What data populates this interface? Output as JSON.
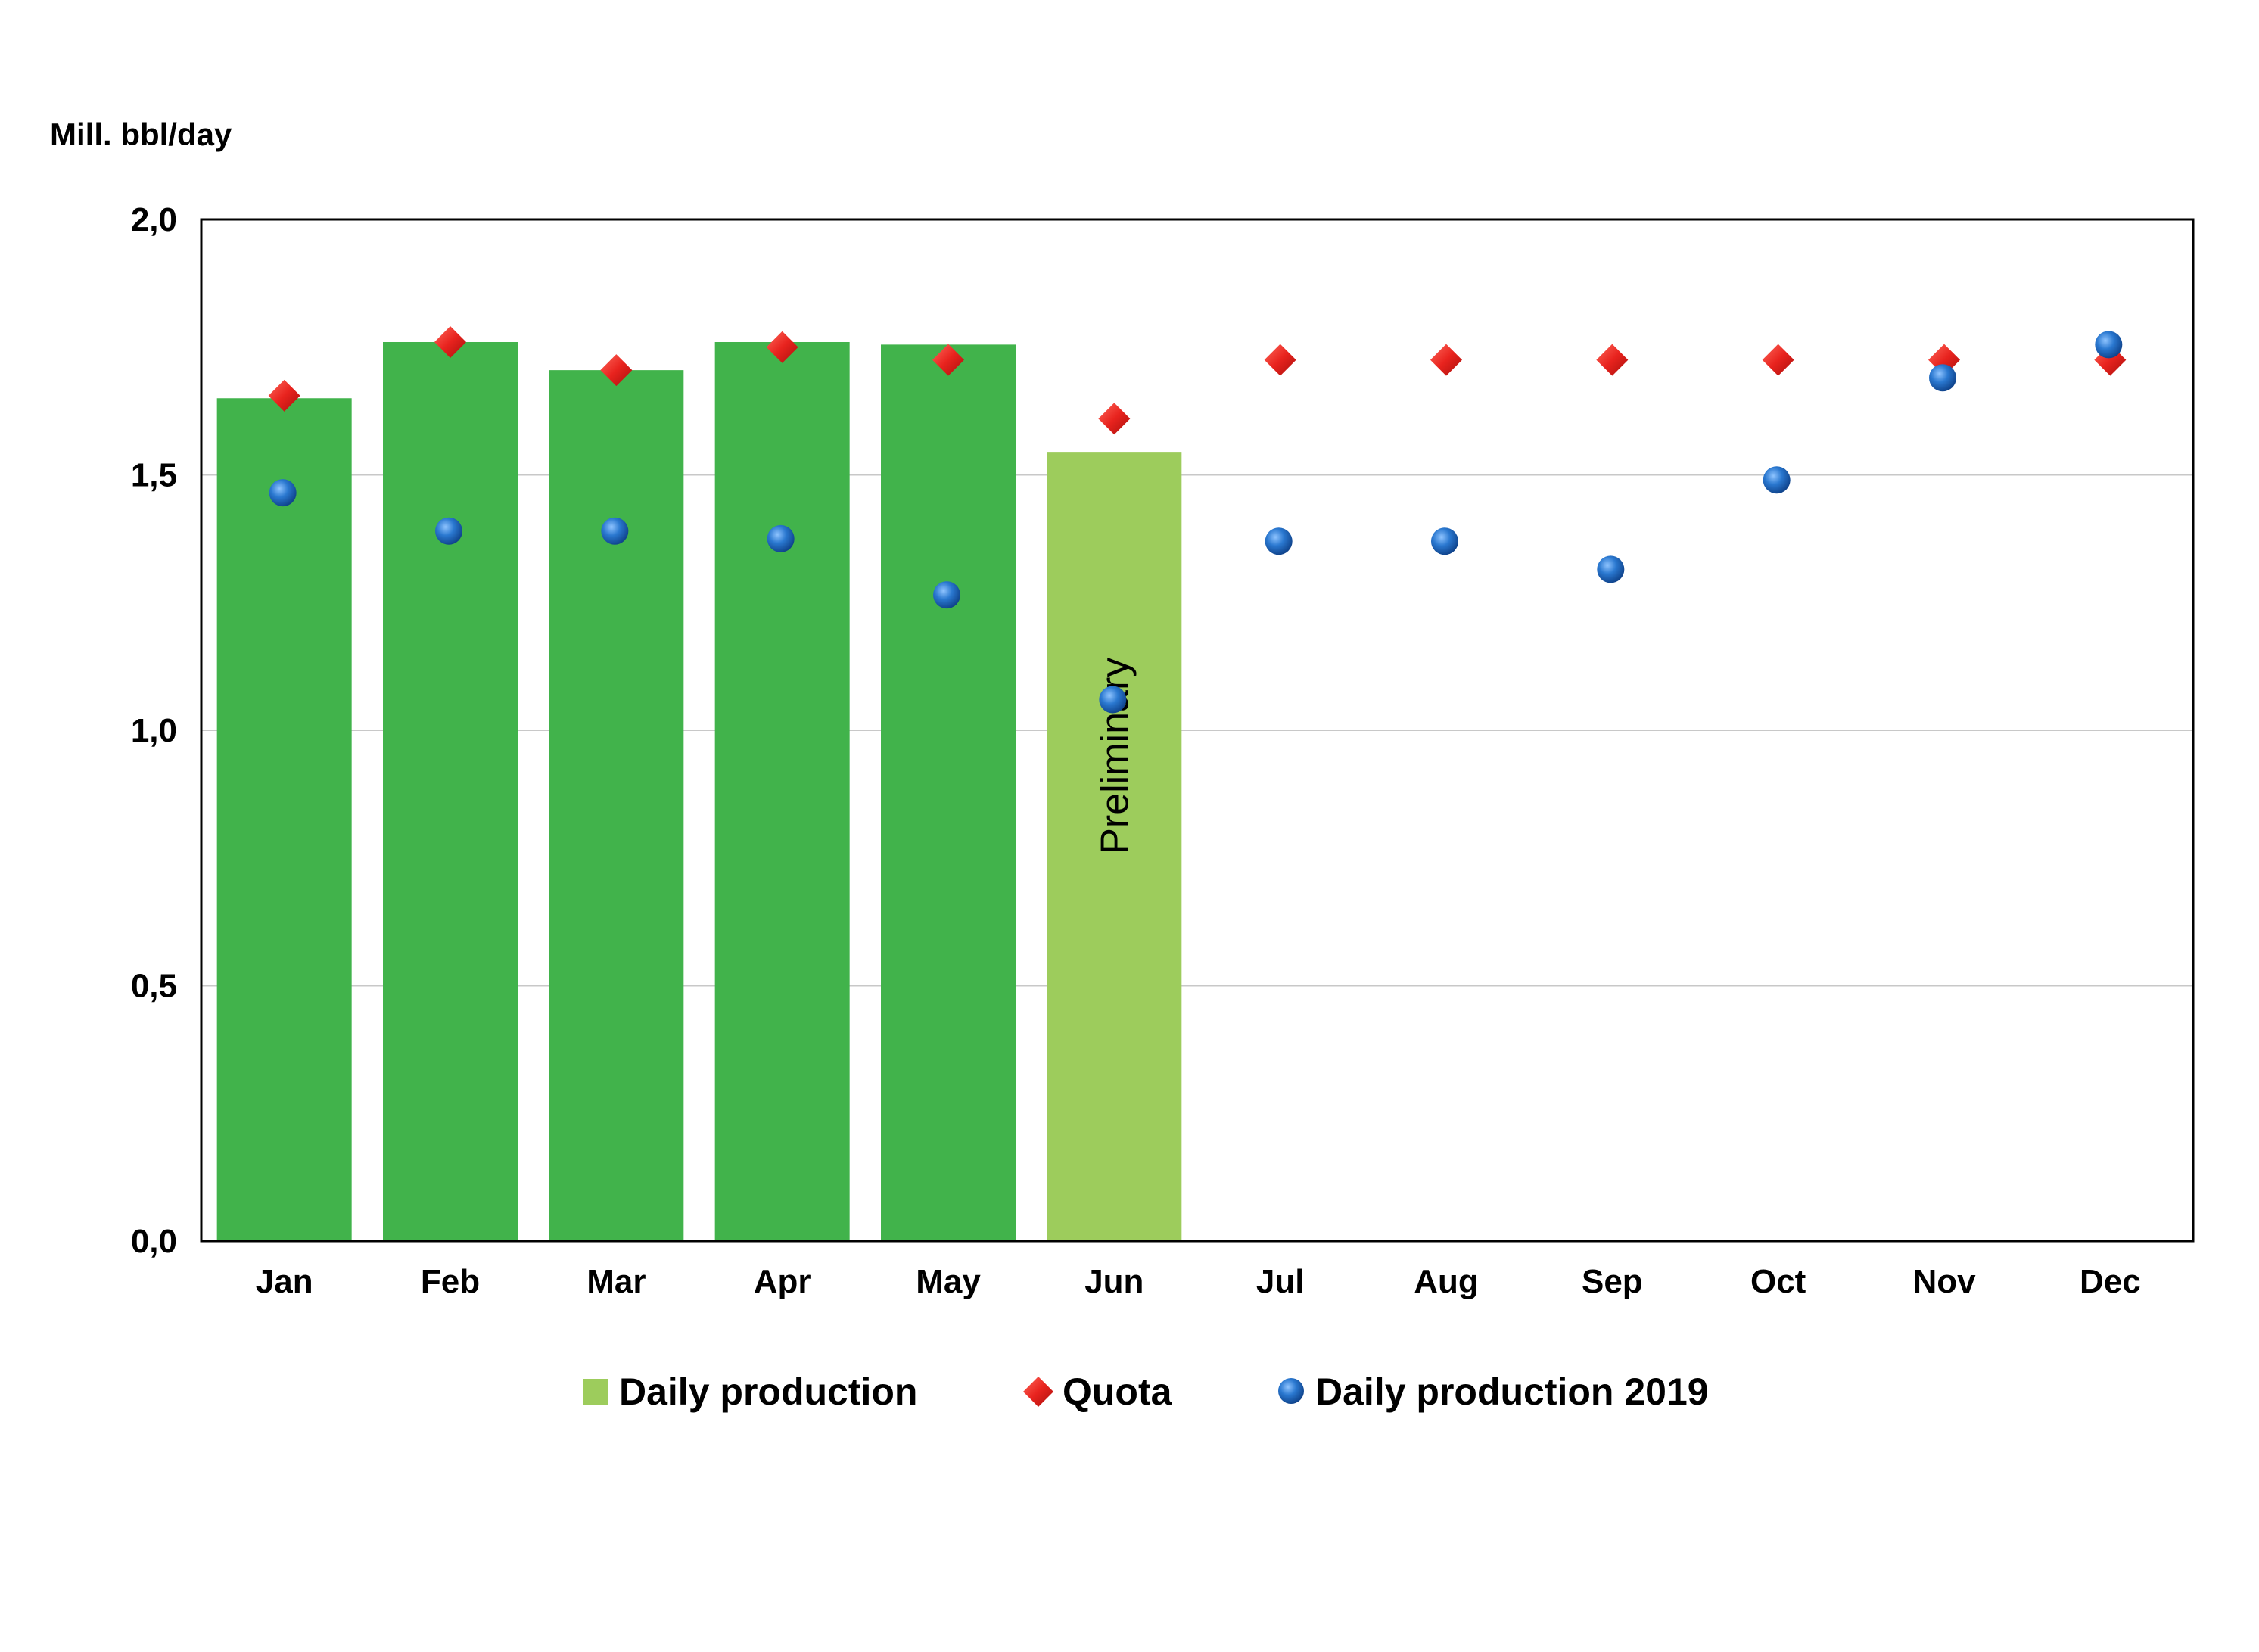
{
  "chart_data": {
    "type": "bar",
    "unit_label": "Mill. bbl/day",
    "categories": [
      "Jan",
      "Feb",
      "Mar",
      "Apr",
      "May",
      "Jun",
      "Jul",
      "Aug",
      "Sep",
      "Oct",
      "Nov",
      "Dec"
    ],
    "ylim": [
      0,
      2.0
    ],
    "yticks": [
      "0,0",
      "0,5",
      "1,0",
      "1,5",
      "2,0"
    ],
    "grid": true,
    "series": [
      {
        "name": "Daily production",
        "kind": "bar",
        "color": "#41b34b",
        "preliminary_color": "#9dcc5c",
        "values": [
          1.65,
          1.76,
          1.705,
          1.76,
          1.755,
          1.545,
          null,
          null,
          null,
          null,
          null,
          null
        ]
      },
      {
        "name": "Quota",
        "kind": "diamond",
        "color": "#e8231e",
        "values": [
          1.655,
          1.76,
          1.705,
          1.75,
          1.725,
          1.61,
          1.725,
          1.725,
          1.725,
          1.725,
          1.725,
          1.725
        ]
      },
      {
        "name": "Daily production 2019",
        "kind": "circle",
        "color": "#1f6cbf",
        "values": [
          1.465,
          1.39,
          1.39,
          1.375,
          1.265,
          1.06,
          1.37,
          1.37,
          1.315,
          1.49,
          1.69,
          1.755
        ]
      }
    ],
    "annotation": {
      "text": "Preliminary",
      "category": "Jun"
    },
    "legend_position": "bottom"
  }
}
